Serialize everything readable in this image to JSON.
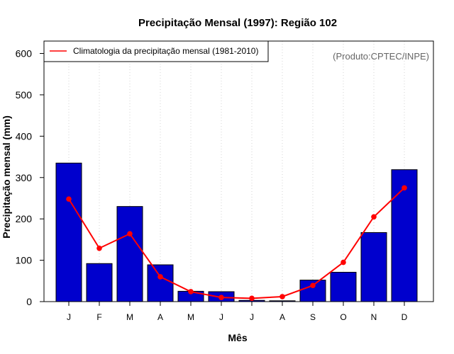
{
  "chart_data": {
    "type": "bar",
    "title": "Precipitação Mensal (1997): Região 102",
    "xlabel": "Mês",
    "ylabel": "Precipitação mensal (mm)",
    "credit": "(Produto:CPTEC/INPE)",
    "categories": [
      "J",
      "F",
      "M",
      "A",
      "M",
      "J",
      "J",
      "A",
      "S",
      "O",
      "N",
      "D"
    ],
    "ylim": [
      0,
      630
    ],
    "yticks": [
      0,
      100,
      200,
      300,
      400,
      500,
      600
    ],
    "grid": "vertical dotted",
    "legend_position": "top-left",
    "series": [
      {
        "name": "Precipitação mensal (1997)",
        "kind": "bar",
        "color": "#0000CD",
        "values": [
          335,
          92,
          230,
          89,
          25,
          24,
          3,
          2,
          52,
          71,
          167,
          319
        ]
      },
      {
        "name": "Climatologia da precipitação mensal (1981-2010)",
        "kind": "line",
        "color": "#FF0000",
        "values": [
          248,
          129,
          164,
          60,
          24,
          10,
          8,
          12,
          39,
          95,
          205,
          275
        ]
      }
    ]
  }
}
